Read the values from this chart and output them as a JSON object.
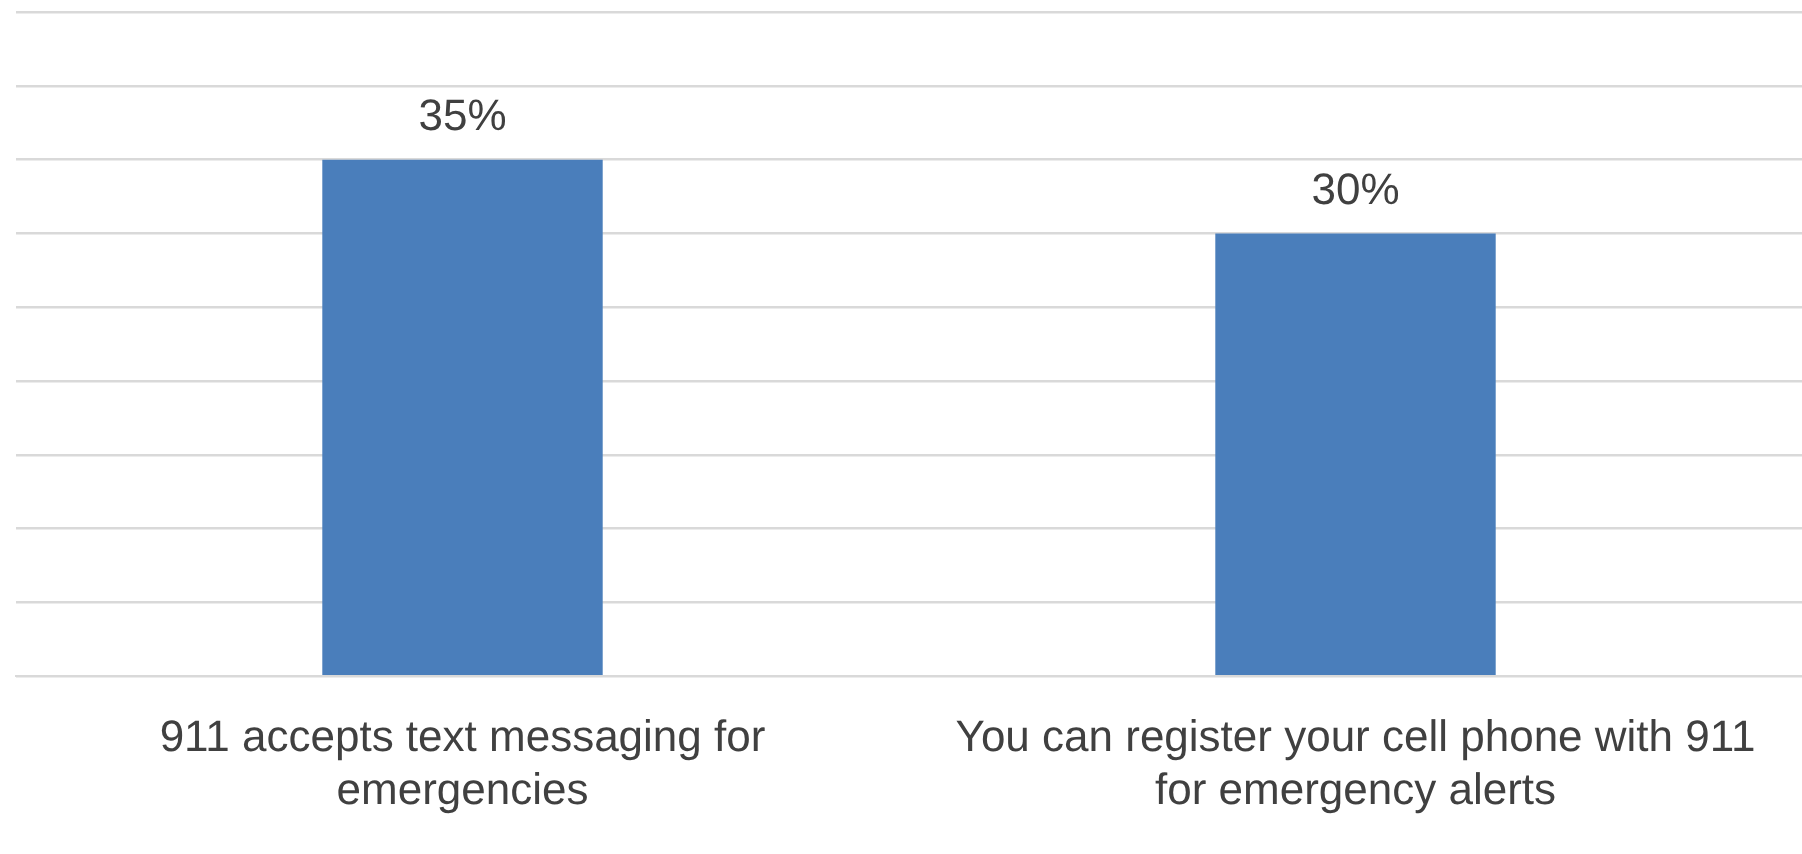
{
  "chart_data": {
    "type": "bar",
    "categories": [
      "911 accepts text messaging for emergencies",
      "You can register your cell phone with 911 for emergency alerts"
    ],
    "values": [
      35,
      30
    ],
    "color": "#4a7ebb",
    "value_labels": [
      "35%",
      "30%"
    ],
    "ylim": [
      0,
      45
    ],
    "yticks": [
      {
        "value": 0,
        "label": null
      },
      {
        "value": 5,
        "label": null
      },
      {
        "value": 10,
        "label": null
      },
      {
        "value": 15,
        "label": null
      },
      {
        "value": 20,
        "label": null
      },
      {
        "value": 25,
        "label": null
      },
      {
        "value": 30,
        "label": null
      },
      {
        "value": 35,
        "label": null
      },
      {
        "value": 40,
        "label": null
      },
      {
        "value": 45,
        "label": null
      }
    ],
    "tick_labels": "x",
    "grid": "y",
    "legend": false
  }
}
